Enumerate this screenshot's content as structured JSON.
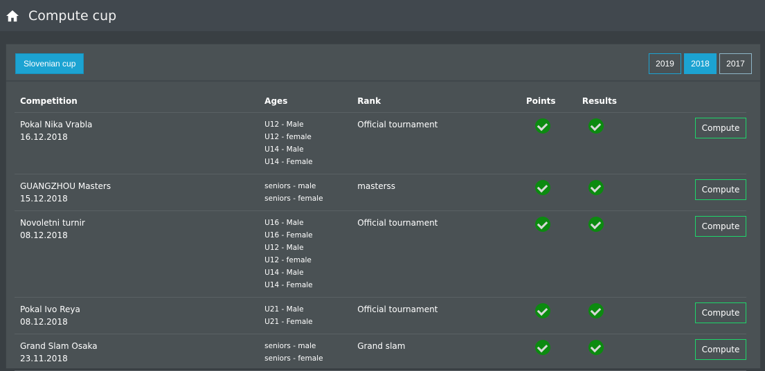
{
  "header": {
    "title": "Compute cup",
    "icon": "home-icon"
  },
  "toolbar": {
    "cup_label": "Slovenian cup",
    "years": [
      "2019",
      "2018",
      "2017"
    ],
    "active_year": "2018"
  },
  "table": {
    "columns": [
      "Competition",
      "Ages",
      "Rank",
      "Points",
      "Results"
    ],
    "compute_label": "Compute",
    "rows": [
      {
        "name": "Pokal Nika Vrabla",
        "date": "16.12.2018",
        "ages": [
          "U12 - Male",
          "U12 - female",
          "U14 - Male",
          "U14 - Female"
        ],
        "rank": "Official tournament",
        "points": true,
        "results": true
      },
      {
        "name": "GUANGZHOU Masters",
        "date": "15.12.2018",
        "ages": [
          "seniors - male",
          "seniors - female"
        ],
        "rank": "masterss",
        "points": true,
        "results": true
      },
      {
        "name": "Novoletni turnir",
        "date": "08.12.2018",
        "ages": [
          "U16 - Male",
          "U16 - Female",
          "U12 - Male",
          "U12 - female",
          "U14 - Male",
          "U14 - Female"
        ],
        "rank": "Official tournament",
        "points": true,
        "results": true
      },
      {
        "name": "Pokal Ivo Reya",
        "date": "08.12.2018",
        "ages": [
          "U21 - Male",
          "U21 - Female"
        ],
        "rank": "Official tournament",
        "points": true,
        "results": true
      },
      {
        "name": "Grand Slam Osaka",
        "date": "23.11.2018",
        "ages": [
          "seniors - male",
          "seniors - female"
        ],
        "rank": "Grand slam",
        "points": true,
        "results": true
      }
    ]
  },
  "colors": {
    "accent": "#1ca3d2",
    "check": "#0c8a10",
    "compute_border": "#1ed66a"
  }
}
